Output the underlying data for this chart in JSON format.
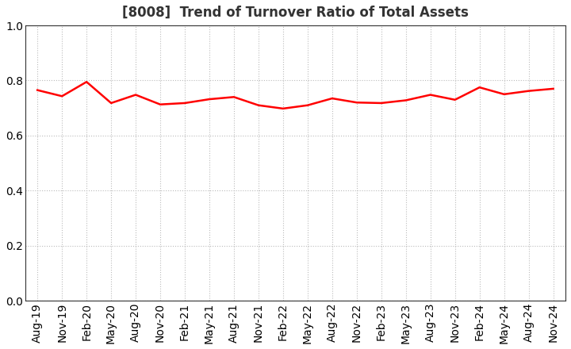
{
  "title": "[8008]  Trend of Turnover Ratio of Total Assets",
  "x_labels": [
    "Aug-19",
    "Nov-19",
    "Feb-20",
    "May-20",
    "Aug-20",
    "Nov-20",
    "Feb-21",
    "May-21",
    "Aug-21",
    "Nov-21",
    "Feb-22",
    "May-22",
    "Aug-22",
    "Nov-22",
    "Feb-23",
    "May-23",
    "Aug-23",
    "Nov-23",
    "Feb-24",
    "May-24",
    "Aug-24",
    "Nov-24"
  ],
  "values": [
    0.765,
    0.743,
    0.795,
    0.718,
    0.748,
    0.713,
    0.718,
    0.732,
    0.74,
    0.71,
    0.698,
    0.71,
    0.735,
    0.72,
    0.718,
    0.728,
    0.748,
    0.73,
    0.775,
    0.75,
    0.762,
    0.77
  ],
  "line_color": "#ff0000",
  "line_width": 1.8,
  "ylim": [
    0.0,
    1.0
  ],
  "yticks": [
    0.0,
    0.2,
    0.4,
    0.6,
    0.8,
    1.0
  ],
  "grid_color": "#bbbbbb",
  "background_color": "#ffffff",
  "title_fontsize": 12,
  "tick_fontsize": 10,
  "title_color": "#333333"
}
